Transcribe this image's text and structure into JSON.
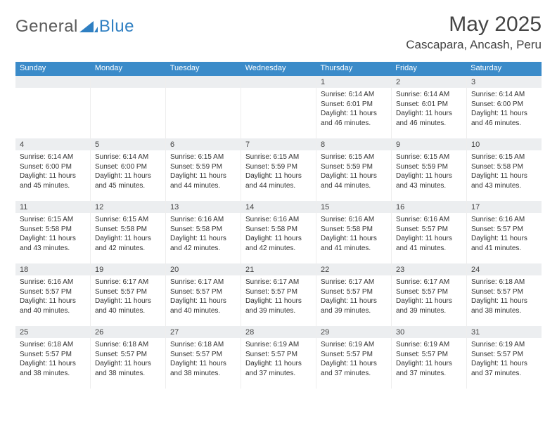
{
  "logo": {
    "part1": "General",
    "part2": "Blue"
  },
  "title": "May 2025",
  "location": "Cascapara, Ancash, Peru",
  "dow": [
    "Sunday",
    "Monday",
    "Tuesday",
    "Wednesday",
    "Thursday",
    "Friday",
    "Saturday"
  ],
  "colors": {
    "header_bg": "#3b8bc9",
    "header_text": "#ffffff",
    "daynum_bg": "#eceef0",
    "logo_blue": "#2f7fc2",
    "logo_gray": "#5a5a5a",
    "text": "#333333"
  },
  "weeks": [
    [
      {
        "d": "",
        "sr": "",
        "ss": "",
        "dl": ""
      },
      {
        "d": "",
        "sr": "",
        "ss": "",
        "dl": ""
      },
      {
        "d": "",
        "sr": "",
        "ss": "",
        "dl": ""
      },
      {
        "d": "",
        "sr": "",
        "ss": "",
        "dl": ""
      },
      {
        "d": "1",
        "sr": "Sunrise: 6:14 AM",
        "ss": "Sunset: 6:01 PM",
        "dl": "Daylight: 11 hours and 46 minutes."
      },
      {
        "d": "2",
        "sr": "Sunrise: 6:14 AM",
        "ss": "Sunset: 6:01 PM",
        "dl": "Daylight: 11 hours and 46 minutes."
      },
      {
        "d": "3",
        "sr": "Sunrise: 6:14 AM",
        "ss": "Sunset: 6:00 PM",
        "dl": "Daylight: 11 hours and 46 minutes."
      }
    ],
    [
      {
        "d": "4",
        "sr": "Sunrise: 6:14 AM",
        "ss": "Sunset: 6:00 PM",
        "dl": "Daylight: 11 hours and 45 minutes."
      },
      {
        "d": "5",
        "sr": "Sunrise: 6:14 AM",
        "ss": "Sunset: 6:00 PM",
        "dl": "Daylight: 11 hours and 45 minutes."
      },
      {
        "d": "6",
        "sr": "Sunrise: 6:15 AM",
        "ss": "Sunset: 5:59 PM",
        "dl": "Daylight: 11 hours and 44 minutes."
      },
      {
        "d": "7",
        "sr": "Sunrise: 6:15 AM",
        "ss": "Sunset: 5:59 PM",
        "dl": "Daylight: 11 hours and 44 minutes."
      },
      {
        "d": "8",
        "sr": "Sunrise: 6:15 AM",
        "ss": "Sunset: 5:59 PM",
        "dl": "Daylight: 11 hours and 44 minutes."
      },
      {
        "d": "9",
        "sr": "Sunrise: 6:15 AM",
        "ss": "Sunset: 5:59 PM",
        "dl": "Daylight: 11 hours and 43 minutes."
      },
      {
        "d": "10",
        "sr": "Sunrise: 6:15 AM",
        "ss": "Sunset: 5:58 PM",
        "dl": "Daylight: 11 hours and 43 minutes."
      }
    ],
    [
      {
        "d": "11",
        "sr": "Sunrise: 6:15 AM",
        "ss": "Sunset: 5:58 PM",
        "dl": "Daylight: 11 hours and 43 minutes."
      },
      {
        "d": "12",
        "sr": "Sunrise: 6:15 AM",
        "ss": "Sunset: 5:58 PM",
        "dl": "Daylight: 11 hours and 42 minutes."
      },
      {
        "d": "13",
        "sr": "Sunrise: 6:16 AM",
        "ss": "Sunset: 5:58 PM",
        "dl": "Daylight: 11 hours and 42 minutes."
      },
      {
        "d": "14",
        "sr": "Sunrise: 6:16 AM",
        "ss": "Sunset: 5:58 PM",
        "dl": "Daylight: 11 hours and 42 minutes."
      },
      {
        "d": "15",
        "sr": "Sunrise: 6:16 AM",
        "ss": "Sunset: 5:58 PM",
        "dl": "Daylight: 11 hours and 41 minutes."
      },
      {
        "d": "16",
        "sr": "Sunrise: 6:16 AM",
        "ss": "Sunset: 5:57 PM",
        "dl": "Daylight: 11 hours and 41 minutes."
      },
      {
        "d": "17",
        "sr": "Sunrise: 6:16 AM",
        "ss": "Sunset: 5:57 PM",
        "dl": "Daylight: 11 hours and 41 minutes."
      }
    ],
    [
      {
        "d": "18",
        "sr": "Sunrise: 6:16 AM",
        "ss": "Sunset: 5:57 PM",
        "dl": "Daylight: 11 hours and 40 minutes."
      },
      {
        "d": "19",
        "sr": "Sunrise: 6:17 AM",
        "ss": "Sunset: 5:57 PM",
        "dl": "Daylight: 11 hours and 40 minutes."
      },
      {
        "d": "20",
        "sr": "Sunrise: 6:17 AM",
        "ss": "Sunset: 5:57 PM",
        "dl": "Daylight: 11 hours and 40 minutes."
      },
      {
        "d": "21",
        "sr": "Sunrise: 6:17 AM",
        "ss": "Sunset: 5:57 PM",
        "dl": "Daylight: 11 hours and 39 minutes."
      },
      {
        "d": "22",
        "sr": "Sunrise: 6:17 AM",
        "ss": "Sunset: 5:57 PM",
        "dl": "Daylight: 11 hours and 39 minutes."
      },
      {
        "d": "23",
        "sr": "Sunrise: 6:17 AM",
        "ss": "Sunset: 5:57 PM",
        "dl": "Daylight: 11 hours and 39 minutes."
      },
      {
        "d": "24",
        "sr": "Sunrise: 6:18 AM",
        "ss": "Sunset: 5:57 PM",
        "dl": "Daylight: 11 hours and 38 minutes."
      }
    ],
    [
      {
        "d": "25",
        "sr": "Sunrise: 6:18 AM",
        "ss": "Sunset: 5:57 PM",
        "dl": "Daylight: 11 hours and 38 minutes."
      },
      {
        "d": "26",
        "sr": "Sunrise: 6:18 AM",
        "ss": "Sunset: 5:57 PM",
        "dl": "Daylight: 11 hours and 38 minutes."
      },
      {
        "d": "27",
        "sr": "Sunrise: 6:18 AM",
        "ss": "Sunset: 5:57 PM",
        "dl": "Daylight: 11 hours and 38 minutes."
      },
      {
        "d": "28",
        "sr": "Sunrise: 6:19 AM",
        "ss": "Sunset: 5:57 PM",
        "dl": "Daylight: 11 hours and 37 minutes."
      },
      {
        "d": "29",
        "sr": "Sunrise: 6:19 AM",
        "ss": "Sunset: 5:57 PM",
        "dl": "Daylight: 11 hours and 37 minutes."
      },
      {
        "d": "30",
        "sr": "Sunrise: 6:19 AM",
        "ss": "Sunset: 5:57 PM",
        "dl": "Daylight: 11 hours and 37 minutes."
      },
      {
        "d": "31",
        "sr": "Sunrise: 6:19 AM",
        "ss": "Sunset: 5:57 PM",
        "dl": "Daylight: 11 hours and 37 minutes."
      }
    ]
  ]
}
